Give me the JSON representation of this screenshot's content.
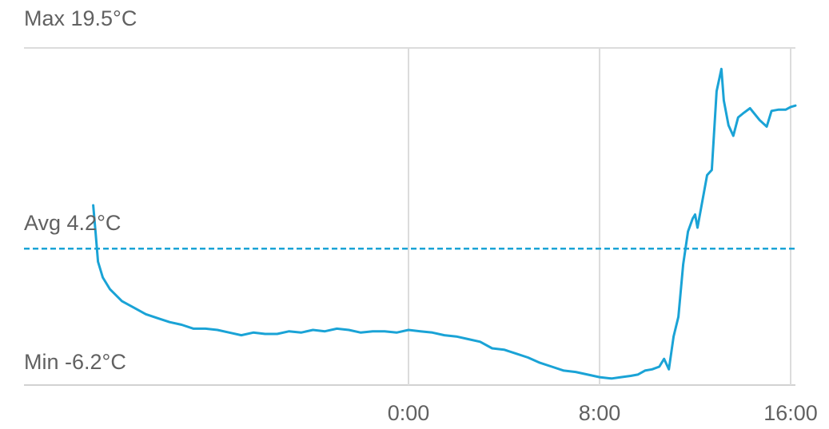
{
  "colors": {
    "series": "#1aa3d6",
    "grid": "#dcdcdc",
    "text": "#616161"
  },
  "labels": {
    "max": "Max 19.5°C",
    "avg": "Avg 4.2°C",
    "min": "Min -6.2°C"
  },
  "chart_data": {
    "type": "line",
    "xlim": [
      -16.1,
      16.2
    ],
    "ylim": [
      -6.2,
      19.5
    ],
    "x_ticks": [
      {
        "x": 0,
        "label": "0:00"
      },
      {
        "x": 8,
        "label": "8:00"
      },
      {
        "x": 16,
        "label": "16:00"
      }
    ],
    "avg": 4.2,
    "series": [
      {
        "values": [
          [
            -13.2,
            7.5
          ],
          [
            -13.1,
            5.4
          ],
          [
            -13.0,
            3.2
          ],
          [
            -12.9,
            2.6
          ],
          [
            -12.8,
            2.0
          ],
          [
            -12.5,
            1.1
          ],
          [
            -12.0,
            0.2
          ],
          [
            -11.5,
            -0.3
          ],
          [
            -11.0,
            -0.8
          ],
          [
            -10.5,
            -1.1
          ],
          [
            -10.0,
            -1.4
          ],
          [
            -9.5,
            -1.6
          ],
          [
            -9.0,
            -1.9
          ],
          [
            -8.5,
            -1.9
          ],
          [
            -8.0,
            -2.0
          ],
          [
            -7.5,
            -2.2
          ],
          [
            -7.0,
            -2.4
          ],
          [
            -6.5,
            -2.2
          ],
          [
            -6.0,
            -2.3
          ],
          [
            -5.5,
            -2.3
          ],
          [
            -5.0,
            -2.1
          ],
          [
            -4.5,
            -2.2
          ],
          [
            -4.0,
            -2.0
          ],
          [
            -3.5,
            -2.1
          ],
          [
            -3.0,
            -1.9
          ],
          [
            -2.5,
            -2.0
          ],
          [
            -2.0,
            -2.2
          ],
          [
            -1.5,
            -2.1
          ],
          [
            -1.0,
            -2.1
          ],
          [
            -0.5,
            -2.2
          ],
          [
            0.0,
            -2.0
          ],
          [
            0.5,
            -2.1
          ],
          [
            1.0,
            -2.2
          ],
          [
            1.5,
            -2.4
          ],
          [
            2.0,
            -2.5
          ],
          [
            2.5,
            -2.7
          ],
          [
            3.0,
            -2.9
          ],
          [
            3.5,
            -3.4
          ],
          [
            4.0,
            -3.5
          ],
          [
            4.5,
            -3.8
          ],
          [
            5.0,
            -4.1
          ],
          [
            5.5,
            -4.5
          ],
          [
            6.0,
            -4.8
          ],
          [
            6.5,
            -5.1
          ],
          [
            7.0,
            -5.2
          ],
          [
            7.5,
            -5.4
          ],
          [
            8.0,
            -5.6
          ],
          [
            8.5,
            -5.7
          ],
          [
            8.9,
            -5.6
          ],
          [
            9.3,
            -5.5
          ],
          [
            9.6,
            -5.4
          ],
          [
            9.9,
            -5.1
          ],
          [
            10.2,
            -5.0
          ],
          [
            10.5,
            -4.8
          ],
          [
            10.7,
            -4.2
          ],
          [
            10.9,
            -5.0
          ],
          [
            11.1,
            -2.5
          ],
          [
            11.3,
            -1.0
          ],
          [
            11.5,
            3.0
          ],
          [
            11.7,
            5.5
          ],
          [
            11.9,
            6.5
          ],
          [
            12.0,
            6.8
          ],
          [
            12.1,
            5.8
          ],
          [
            12.3,
            7.8
          ],
          [
            12.5,
            9.8
          ],
          [
            12.7,
            10.2
          ],
          [
            12.9,
            16.2
          ],
          [
            13.1,
            17.9
          ],
          [
            13.2,
            15.5
          ],
          [
            13.4,
            13.6
          ],
          [
            13.6,
            12.8
          ],
          [
            13.8,
            14.2
          ],
          [
            14.0,
            14.5
          ],
          [
            14.3,
            14.9
          ],
          [
            14.7,
            14.0
          ],
          [
            15.0,
            13.5
          ],
          [
            15.2,
            14.7
          ],
          [
            15.5,
            14.8
          ],
          [
            15.8,
            14.8
          ],
          [
            16.0,
            15.0
          ],
          [
            16.2,
            15.1
          ]
        ]
      }
    ]
  }
}
